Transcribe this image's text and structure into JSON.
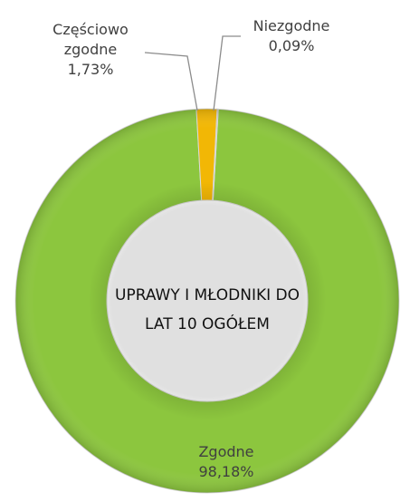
{
  "chart_data": {
    "type": "donut",
    "title": "UPRAWY I MŁODNIKI DO LAT 10 OGÓŁEM",
    "categories": [
      "Zgodne",
      "Częściowo zgodne",
      "Niezgodne"
    ],
    "values": [
      98.18,
      1.73,
      0.09
    ],
    "value_labels": [
      "98,18%",
      "1,73%",
      "0,09%"
    ],
    "colors": [
      "#8cc63e",
      "#f2b705",
      "#a6a6a6"
    ]
  }
}
